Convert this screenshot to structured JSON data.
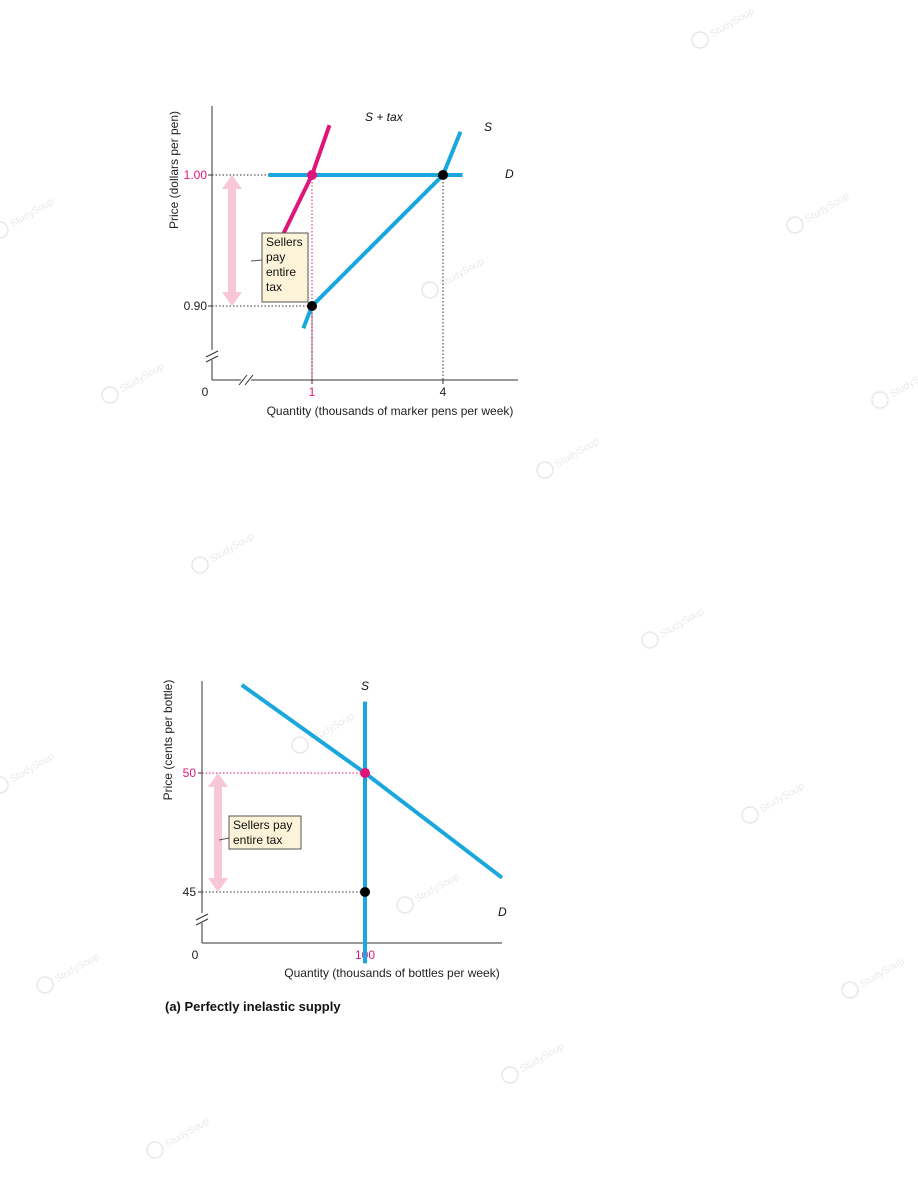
{
  "watermark": {
    "text": "StudySoup"
  },
  "chart_data": [
    {
      "type": "line",
      "ylabel": "Price (dollars per pen)",
      "xlabel": "Quantity (thousands of marker pens per week)",
      "x_ticks": [
        {
          "label": "0",
          "value": 0
        },
        {
          "label": "1",
          "value": 1,
          "highlight": true
        },
        {
          "label": "4",
          "value": 4
        }
      ],
      "y_ticks": [
        {
          "label": "1.00",
          "value": 1.0,
          "highlight": true
        },
        {
          "label": "0.90",
          "value": 0.9
        }
      ],
      "series": [
        {
          "name": "S + tax",
          "color": "#e0157a",
          "points": [
            [
              0.3,
              0.952
            ],
            [
              1.0,
              1.0
            ],
            [
              1.4,
              1.038
            ]
          ]
        },
        {
          "name": "S",
          "color": "#1aa7dd",
          "points": [
            [
              0.8,
              0.883
            ],
            [
              1.0,
              0.9
            ],
            [
              4.0,
              1.0
            ],
            [
              4.4,
              1.033
            ]
          ]
        },
        {
          "name": "D",
          "color": "#1aa7dd",
          "points": [
            [
              0.0,
              1.0
            ],
            [
              4.45,
              1.0
            ]
          ]
        }
      ],
      "points": [
        {
          "x": 1,
          "y": 1.0,
          "color": "#e0157a"
        },
        {
          "x": 4,
          "y": 1.0,
          "color": "#000000"
        },
        {
          "x": 1,
          "y": 0.9,
          "color": "#000000"
        }
      ],
      "annotation": {
        "lines": [
          "Sellers",
          "pay",
          "entire",
          "tax"
        ],
        "from": 1.0,
        "to": 0.9
      }
    },
    {
      "type": "line",
      "ylabel": "Price (cents per bottle)",
      "xlabel": "Quantity (thousands of bottles per week)",
      "title": "(a) Perfectly inelastic supply",
      "x_ticks": [
        {
          "label": "0",
          "value": 0
        },
        {
          "label": "100",
          "value": 100,
          "highlight": true
        }
      ],
      "y_ticks": [
        {
          "label": "50",
          "value": 50,
          "highlight": true
        },
        {
          "label": "45",
          "value": 45
        }
      ],
      "series": [
        {
          "name": "S",
          "color": "#1aa7dd",
          "points": [
            [
              100,
              42
            ],
            [
              100,
              53
            ]
          ]
        },
        {
          "name": "D",
          "color": "#1aa7dd",
          "points": [
            [
              55,
              53.7
            ],
            [
              100,
              50
            ],
            [
              150,
              45.6
            ]
          ]
        }
      ],
      "points": [
        {
          "x": 100,
          "y": 50,
          "color": "#e0157a"
        },
        {
          "x": 100,
          "y": 45,
          "color": "#000000"
        }
      ],
      "annotation": {
        "lines": [
          "Sellers pay",
          "entire tax"
        ],
        "from": 50,
        "to": 45
      }
    }
  ]
}
